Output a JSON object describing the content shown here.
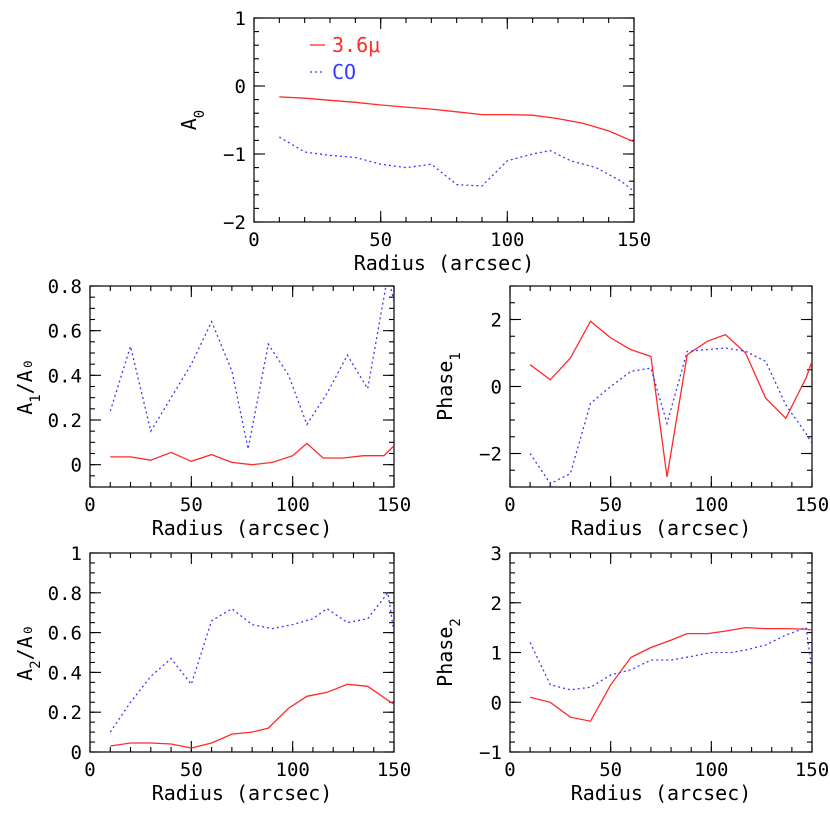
{
  "colors": {
    "ir": "#ff2a2a",
    "co": "#3a3aff",
    "axis": "#000000"
  },
  "legend": {
    "entries": [
      {
        "label": "3.6μ",
        "color": "#ff2a2a",
        "dash": "solid"
      },
      {
        "label": "CO",
        "color": "#3a3aff",
        "dash": "dotted"
      }
    ]
  },
  "chart_data": [
    {
      "type": "line",
      "id": "a0",
      "xlabel": "Radius (arcsec)",
      "ylabel_main": "A",
      "ylabel_sub": "0",
      "ylabel_suffix": "",
      "xlim": [
        0,
        150
      ],
      "ylim": [
        -2,
        1
      ],
      "xticks": [
        0,
        50,
        100,
        150
      ],
      "yticks": [
        -2,
        -1,
        0,
        1
      ],
      "minor_x": 10,
      "minor_y": 0.2,
      "series": [
        {
          "name": "3.6μ",
          "x": [
            10,
            20,
            30,
            40,
            50,
            60,
            70,
            80,
            90,
            100,
            110,
            120,
            130,
            140,
            150
          ],
          "y": [
            -0.16,
            -0.18,
            -0.21,
            -0.24,
            -0.28,
            -0.31,
            -0.34,
            -0.38,
            -0.42,
            -0.42,
            -0.43,
            -0.48,
            -0.55,
            -0.66,
            -0.82
          ]
        },
        {
          "name": "CO",
          "x": [
            10,
            20,
            30,
            40,
            50,
            60,
            70,
            80,
            90,
            100,
            110,
            117,
            125,
            135,
            145,
            150
          ],
          "y": [
            -0.75,
            -0.97,
            -1.02,
            -1.05,
            -1.15,
            -1.2,
            -1.15,
            -1.45,
            -1.47,
            -1.1,
            -1.0,
            -0.95,
            -1.1,
            -1.2,
            -1.4,
            -1.55
          ]
        }
      ]
    },
    {
      "type": "line",
      "id": "a1",
      "xlabel": "Radius (arcsec)",
      "ylabel_main": "A",
      "ylabel_sub": "1",
      "ylabel_suffix": "/A₀",
      "xlim": [
        0,
        150
      ],
      "ylim": [
        -0.1,
        0.8
      ],
      "xticks": [
        0,
        50,
        100,
        150
      ],
      "yticks": [
        0,
        0.2,
        0.4,
        0.6,
        0.8
      ],
      "minor_x": 10,
      "minor_y": 0.05,
      "series": [
        {
          "name": "3.6μ",
          "x": [
            10,
            20,
            30,
            40,
            50,
            60,
            70,
            80,
            90,
            100,
            107,
            115,
            125,
            135,
            145,
            150
          ],
          "y": [
            0.035,
            0.035,
            0.02,
            0.055,
            0.015,
            0.045,
            0.01,
            0.0,
            0.01,
            0.04,
            0.095,
            0.03,
            0.03,
            0.04,
            0.04,
            0.085
          ]
        },
        {
          "name": "CO",
          "x": [
            10,
            20,
            30,
            40,
            50,
            60,
            70,
            78,
            88,
            98,
            107,
            117,
            127,
            137,
            147,
            150
          ],
          "y": [
            0.24,
            0.53,
            0.15,
            0.3,
            0.45,
            0.64,
            0.42,
            0.07,
            0.54,
            0.4,
            0.18,
            0.32,
            0.49,
            0.34,
            0.85,
            0.73
          ]
        }
      ]
    },
    {
      "type": "line",
      "id": "phase1",
      "xlabel": "Radius (arcsec)",
      "ylabel_main": "Phase",
      "ylabel_sub": "1",
      "ylabel_suffix": "",
      "xlim": [
        0,
        150
      ],
      "ylim": [
        -3,
        3
      ],
      "xticks": [
        0,
        50,
        100,
        150
      ],
      "yticks": [
        -2,
        0,
        2
      ],
      "minor_x": 10,
      "minor_y": 0.5,
      "series": [
        {
          "name": "3.6μ",
          "x": [
            10,
            20,
            30,
            40,
            50,
            60,
            70,
            78,
            88,
            98,
            107,
            117,
            127,
            137,
            147,
            150
          ],
          "y": [
            0.65,
            0.2,
            0.85,
            1.95,
            1.45,
            1.1,
            0.9,
            -2.7,
            0.95,
            1.35,
            1.55,
            1.0,
            -0.35,
            -0.95,
            0.25,
            0.75
          ]
        },
        {
          "name": "CO",
          "x": [
            10,
            20,
            30,
            40,
            50,
            60,
            70,
            78,
            88,
            98,
            107,
            117,
            127,
            137,
            147,
            150
          ],
          "y": [
            -2.0,
            -2.9,
            -2.6,
            -0.5,
            0.0,
            0.45,
            0.55,
            -1.1,
            1.05,
            1.1,
            1.15,
            1.05,
            0.75,
            -0.55,
            -1.4,
            -1.7
          ]
        }
      ]
    },
    {
      "type": "line",
      "id": "a2",
      "xlabel": "Radius (arcsec)",
      "ylabel_main": "A",
      "ylabel_sub": "2",
      "ylabel_suffix": "/A₀",
      "xlim": [
        0,
        150
      ],
      "ylim": [
        0,
        1
      ],
      "xticks": [
        0,
        50,
        100,
        150
      ],
      "yticks": [
        0,
        0.2,
        0.4,
        0.6,
        0.8,
        1
      ],
      "minor_x": 10,
      "minor_y": 0.05,
      "series": [
        {
          "name": "3.6μ",
          "x": [
            10,
            20,
            30,
            40,
            50,
            60,
            70,
            80,
            88,
            98,
            107,
            117,
            127,
            137,
            147,
            150
          ],
          "y": [
            0.03,
            0.045,
            0.045,
            0.04,
            0.02,
            0.045,
            0.09,
            0.1,
            0.12,
            0.22,
            0.28,
            0.3,
            0.34,
            0.33,
            0.26,
            0.24
          ]
        },
        {
          "name": "CO",
          "x": [
            10,
            20,
            30,
            40,
            50,
            60,
            70,
            80,
            90,
            100,
            110,
            117,
            127,
            137,
            147,
            150
          ],
          "y": [
            0.1,
            0.25,
            0.38,
            0.47,
            0.34,
            0.66,
            0.72,
            0.64,
            0.62,
            0.64,
            0.67,
            0.72,
            0.65,
            0.67,
            0.8,
            0.6
          ]
        }
      ]
    },
    {
      "type": "line",
      "id": "phase2",
      "xlabel": "Radius (arcsec)",
      "ylabel_main": "Phase",
      "ylabel_sub": "2",
      "ylabel_suffix": "",
      "xlim": [
        0,
        150
      ],
      "ylim": [
        -1,
        3
      ],
      "xticks": [
        0,
        50,
        100,
        150
      ],
      "yticks": [
        -1,
        0,
        1,
        2,
        3
      ],
      "minor_x": 10,
      "minor_y": 0.2,
      "series": [
        {
          "name": "3.6μ",
          "x": [
            10,
            20,
            30,
            40,
            50,
            60,
            70,
            80,
            88,
            98,
            107,
            117,
            127,
            137,
            147,
            150
          ],
          "y": [
            0.1,
            0.0,
            -0.3,
            -0.38,
            0.35,
            0.9,
            1.1,
            1.25,
            1.38,
            1.38,
            1.43,
            1.5,
            1.48,
            1.48,
            1.47,
            1.45
          ]
        },
        {
          "name": "CO",
          "x": [
            10,
            20,
            30,
            40,
            50,
            60,
            70,
            80,
            90,
            100,
            110,
            117,
            127,
            137,
            147,
            150
          ],
          "y": [
            1.2,
            0.35,
            0.25,
            0.3,
            0.55,
            0.65,
            0.85,
            0.85,
            0.92,
            1.0,
            1.0,
            1.05,
            1.15,
            1.35,
            1.5,
            0.65
          ]
        }
      ]
    }
  ]
}
